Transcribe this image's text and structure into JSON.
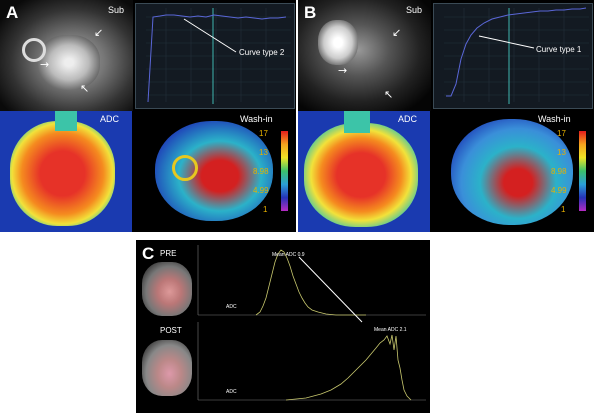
{
  "panels": {
    "A": {
      "letter": "A",
      "sub_label": "Sub",
      "curve_label": "Curve type 2",
      "adc_label": "ADC",
      "washin_label": "Wash-in",
      "colorbar_ticks": [
        "17",
        "13",
        "8.98",
        "4.99",
        "1"
      ]
    },
    "B": {
      "letter": "B",
      "sub_label": "Sub",
      "curve_label": "Curve type 1",
      "adc_label": "ADC",
      "washin_label": "Wash-in",
      "colorbar_ticks": [
        "17",
        "13",
        "8.98",
        "4.99",
        "1"
      ]
    },
    "C": {
      "letter": "C",
      "pre_label": "PRE",
      "post_label": "POST",
      "pre_mean": "Mean ADC 0.9",
      "post_mean": "Mean ADC 2.1",
      "adc_axis_label": "ADC"
    }
  },
  "colors": {
    "curve_line": "#5a67d8",
    "cursor_line": "#3fb6b0",
    "histogram": "#c8c86e",
    "colorbar_text": "#e6b000"
  }
}
